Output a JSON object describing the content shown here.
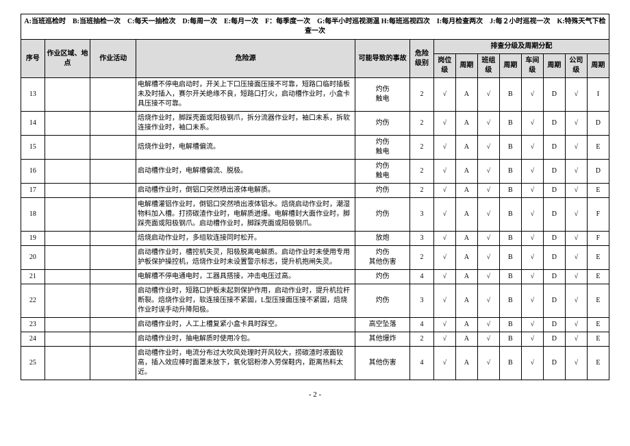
{
  "legend": "A:当班巡检时　B:当班抽检一次　C:每天一抽检次　D:每周一次　E:每月一次　F：每季度一次　G:每半小时巡视测温 H:每班巡视四次　I:每月检查两次　J:每２小时巡视一次　K:特殊天气下检查一次",
  "headers": {
    "seq": "序号",
    "area": "作业区域、地点",
    "act": "作业活动",
    "haz": "危险源",
    "acc": "可能导致的事故",
    "lvl": "危险级别",
    "group": "排查分级及周期分配",
    "c": [
      "岗位级",
      "周期",
      "班组级",
      "周期",
      "车间级",
      "周期",
      "公司级",
      "周期"
    ]
  },
  "rows": [
    {
      "seq": "13",
      "haz": "电解槽不停电启动时，开关上下口压接面压接不可靠，短路口临时插板未及时插入，赛尔开关绝缘不良，短路口打火，启动槽作业时，小盒卡具压接不可靠。",
      "acc": "灼伤\n触电",
      "lvl": "2",
      "c": [
        "√",
        "A",
        "√",
        "B",
        "√",
        "D",
        "√",
        "I"
      ]
    },
    {
      "seq": "14",
      "haz": "焙烧作业时，脚踩壳面或阳极钢爪，拆分流器作业时，袖口未系，拆软连接作业时，袖口未系。",
      "acc": "灼伤",
      "lvl": "2",
      "c": [
        "√",
        "A",
        "√",
        "B",
        "√",
        "D",
        "√",
        "D"
      ]
    },
    {
      "seq": "15",
      "haz": "焙烧作业时，电解槽偏流。",
      "acc": "灼伤\n触电",
      "lvl": "2",
      "c": [
        "√",
        "A",
        "√",
        "B",
        "√",
        "D",
        "√",
        "E"
      ]
    },
    {
      "seq": "16",
      "haz": "启动槽作业时，电解槽偏流、脱极。",
      "acc": "灼伤\n触电",
      "lvl": "2",
      "c": [
        "√",
        "A",
        "√",
        "B",
        "√",
        "D",
        "√",
        "D"
      ]
    },
    {
      "seq": "17",
      "haz": "启动槽作业时，倒铝口突然喷出液体电解质。",
      "acc": "灼伤",
      "lvl": "2",
      "c": [
        "√",
        "A",
        "√",
        "B",
        "√",
        "D",
        "√",
        "E"
      ]
    },
    {
      "seq": "18",
      "haz": "电解槽灌铝作业时，倒铝口突然喷出液体铝水。焙烧启动作业时，潮湿物料加入槽。打捞碳渣作业时，电解质迸爆。电解槽封大面作业时，脚踩壳面或阳极钢爪。启动槽作业时，脚踩壳面或阳极钢爪。",
      "acc": "灼伤",
      "lvl": "3",
      "c": [
        "√",
        "A",
        "√",
        "B",
        "√",
        "D",
        "√",
        "F"
      ]
    },
    {
      "seq": "19",
      "haz": "焙烧启动作业时，多组软连接同时松开。",
      "acc": "放炮",
      "lvl": "3",
      "c": [
        "√",
        "A",
        "√",
        "B",
        "√",
        "D",
        "√",
        "F"
      ]
    },
    {
      "seq": "20",
      "haz": "启动槽作业时，槽控机失灵，阳极脱离电解质。启动作业时未使用专用护板保护操控机，焙烧作业时未设置警示标志，提升机抱闸失灵。",
      "acc": "灼伤\n其他伤害",
      "lvl": "2",
      "c": [
        "√",
        "A",
        "√",
        "B",
        "√",
        "D",
        "√",
        "E"
      ]
    },
    {
      "seq": "21",
      "haz": "电解槽不停电通电时，工器具搭接，冲击电压过高。",
      "acc": "灼伤",
      "lvl": "4",
      "c": [
        "√",
        "A",
        "√",
        "B",
        "√",
        "D",
        "√",
        "E"
      ]
    },
    {
      "seq": "22",
      "haz": "启动槽作业时，短路口护板未起到保护作用，启动作业时，提升机拉杆断裂。焙烧作业时，软连接压接不紧固，L型压接面压接不紧固，焙烧作业时误手动升降阳极。",
      "acc": "灼伤",
      "lvl": "3",
      "c": [
        "√",
        "A",
        "√",
        "B",
        "√",
        "D",
        "√",
        "E"
      ]
    },
    {
      "seq": "23",
      "haz": "启动槽作业时，人工上槽复紧小盒卡具时踩空。",
      "acc": "高空坠落",
      "lvl": "4",
      "c": [
        "√",
        "A",
        "√",
        "B",
        "√",
        "D",
        "√",
        "E"
      ]
    },
    {
      "seq": "24",
      "haz": "启动槽作业时，抽电解质时使用冷包。",
      "acc": "其他爆炸",
      "lvl": "2",
      "c": [
        "√",
        "A",
        "√",
        "B",
        "√",
        "D",
        "√",
        "E"
      ]
    },
    {
      "seq": "25",
      "haz": "启动槽作业时，电流分布过大吹风处理时开风较大，捞碳渣时液面较高，插入效应棒时面罩未放下，氧化铝粉渗入劳保鞋内，距离热料太近。",
      "acc": "其他伤害",
      "lvl": "4",
      "c": [
        "√",
        "A",
        "√",
        "B",
        "√",
        "D",
        "√",
        "E"
      ]
    }
  ],
  "page": "- 2 -"
}
